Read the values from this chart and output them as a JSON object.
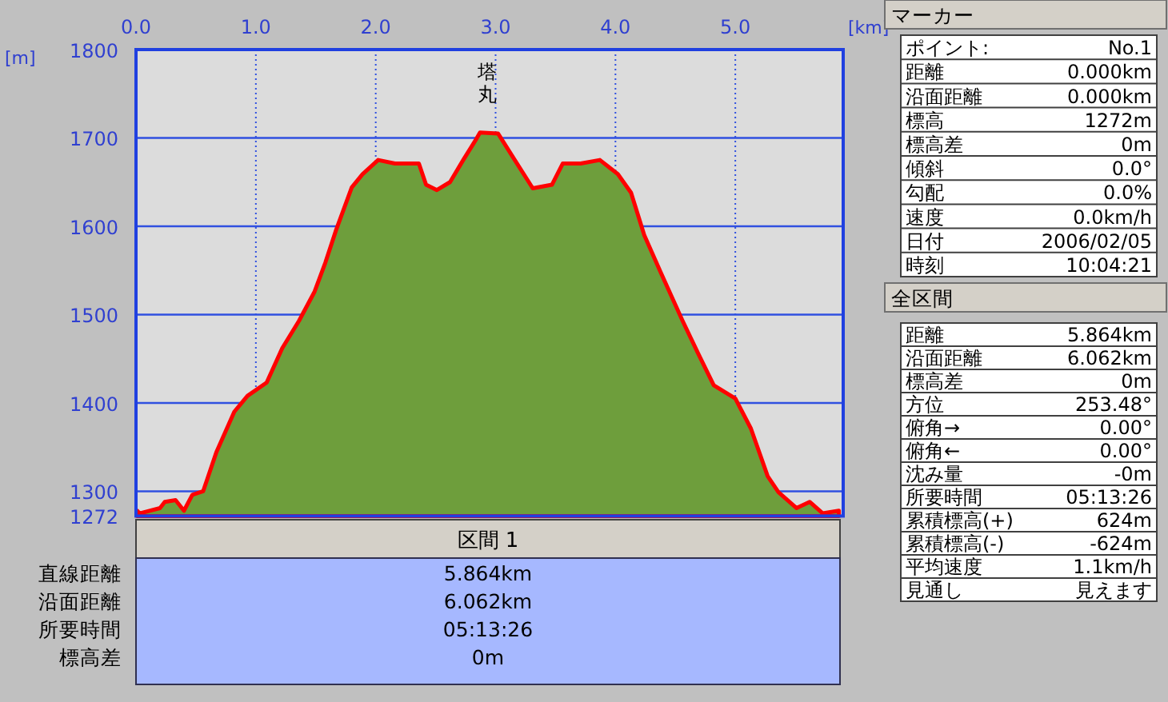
{
  "chart_data": [
    {
      "type": "area",
      "xlabel": "[km]",
      "ylabel": "[m]",
      "x": [
        0.01,
        0.03,
        0.2,
        0.24,
        0.33,
        0.4,
        0.47,
        0.56,
        0.67,
        0.82,
        0.93,
        1.09,
        1.22,
        1.36,
        1.49,
        1.58,
        1.67,
        1.8,
        1.89,
        2.02,
        2.16,
        2.36,
        2.42,
        2.51,
        2.62,
        2.73,
        2.84,
        2.87,
        3.02,
        3.16,
        3.31,
        3.47,
        3.56,
        3.71,
        3.87,
        4.02,
        4.13,
        4.24,
        4.38,
        4.56,
        4.69,
        4.82,
        5.0,
        5.13,
        5.27,
        5.36,
        5.51,
        5.62,
        5.73,
        5.864
      ],
      "series": [
        {
          "color": "#6e9e3c",
          "values": [
            1278,
            1275,
            1281,
            1288,
            1290,
            1278,
            1296,
            1300,
            1344,
            1390,
            1408,
            1423,
            1462,
            1493,
            1526,
            1559,
            1596,
            1644,
            1659,
            1675,
            1671,
            1671,
            1647,
            1641,
            1650,
            1675,
            1699,
            1706,
            1705,
            1675,
            1643,
            1647,
            1671,
            1671,
            1675,
            1659,
            1638,
            1590,
            1547,
            1493,
            1456,
            1420,
            1405,
            1371,
            1317,
            1299,
            1281,
            1288,
            1275,
            1278
          ]
        }
      ],
      "xlim": [
        0,
        5.9
      ],
      "ylim": [
        1272,
        1800
      ],
      "xticks": [
        {
          "value": 0,
          "label": "0.0"
        },
        {
          "value": 1,
          "label": "1.0"
        },
        {
          "value": 2,
          "label": "2.0"
        },
        {
          "value": 3,
          "label": "3.0"
        },
        {
          "value": 4,
          "label": "4.0"
        },
        {
          "value": 5,
          "label": "5.0"
        }
      ],
      "yticks": [
        1272,
        1300,
        1400,
        1500,
        1600,
        1700,
        1800
      ],
      "grid": true,
      "annotations": [
        {
          "text": "塔丸",
          "x": 2.93,
          "y": 1706
        }
      ]
    },
    {
      "type": "other",
      "title": "区間 1",
      "annotations": [
        "直線距離",
        "5.864km",
        "沿面距離",
        "6.062km",
        "所要時間",
        "05:13:26",
        "標高差",
        "0m"
      ]
    },
    {
      "type": "other",
      "title": "マーカー",
      "annotations": [
        "ポイント:",
        "No.1",
        "距離",
        "0.000km",
        "沿面距離",
        "0.000km",
        "標高",
        "1272m",
        "標高差",
        "0m",
        "傾斜",
        "0.0°",
        "勾配",
        "0.0%",
        "速度",
        "0.0km/h",
        "日付",
        "2006/02/05",
        "時刻",
        "10:04:21"
      ]
    },
    {
      "type": "other",
      "title": "全区間",
      "annotations": [
        "距離",
        "5.864km",
        "沿面距離",
        "6.062km",
        "標高差",
        "0m",
        "方位",
        "253.48°",
        "俯角→",
        "0.00°",
        "俯角←",
        "0.00°",
        "沈み量",
        "-0m",
        "所要時間",
        "05:13:26",
        "累積標高(+)",
        "624m",
        "累積標高(-)",
        "-624m",
        "平均速度",
        "1.1km/h",
        "見通し",
        "見えます"
      ]
    }
  ]
}
